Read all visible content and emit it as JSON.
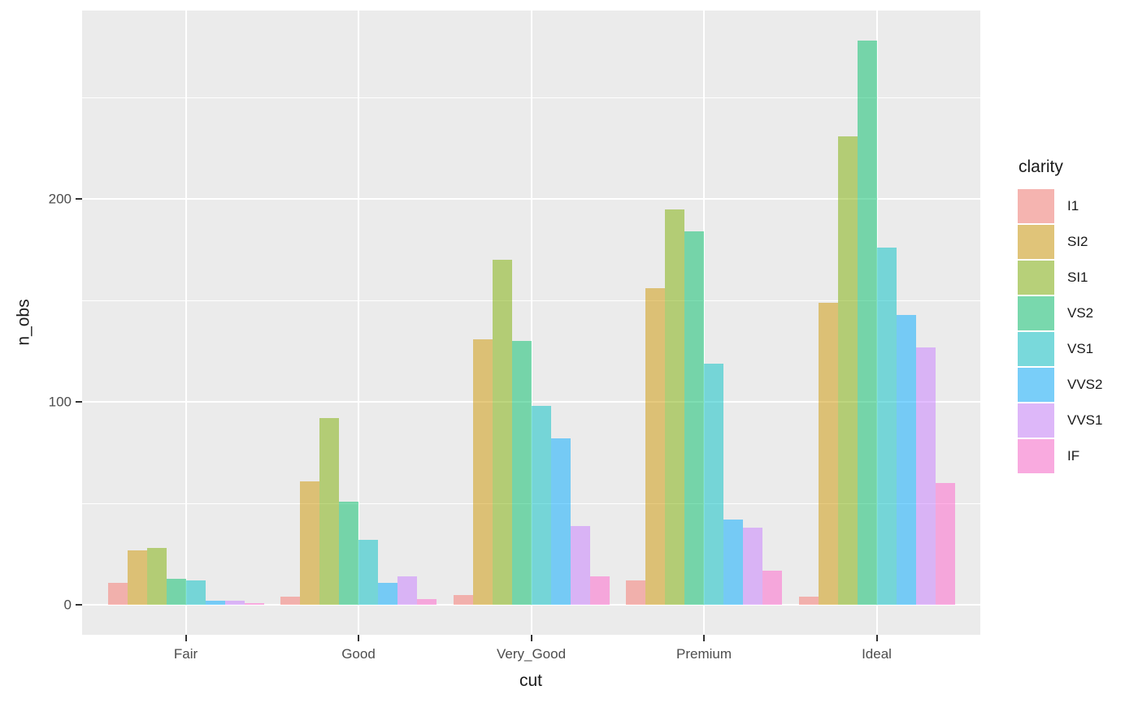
{
  "figure": {
    "background": "#FFFFFF"
  },
  "chart_data": {
    "type": "bar",
    "mode": "grouped-dodge",
    "title": "",
    "xlabel": "cut",
    "ylabel": "n_obs",
    "legend_title": "clarity",
    "legend_position": "right",
    "categories": [
      "Fair",
      "Good",
      "Very_Good",
      "Premium",
      "Ideal"
    ],
    "series": [
      {
        "name": "I1",
        "color": "#F8766D",
        "values": [
          11,
          4,
          5,
          12,
          4
        ]
      },
      {
        "name": "SI2",
        "color": "#CD9600",
        "values": [
          27,
          61,
          131,
          156,
          149
        ]
      },
      {
        "name": "SI1",
        "color": "#7CAE00",
        "values": [
          28,
          92,
          170,
          195,
          231
        ]
      },
      {
        "name": "VS2",
        "color": "#00BE67",
        "values": [
          13,
          51,
          130,
          184,
          278
        ]
      },
      {
        "name": "VS1",
        "color": "#00BFC4",
        "values": [
          12,
          32,
          98,
          119,
          176
        ]
      },
      {
        "name": "VVS2",
        "color": "#00A9FF",
        "values": [
          2,
          11,
          82,
          42,
          143
        ]
      },
      {
        "name": "VVS1",
        "color": "#C77CFF",
        "values": [
          2,
          14,
          39,
          38,
          127
        ]
      },
      {
        "name": "IF",
        "color": "#FF61CC",
        "values": [
          1,
          3,
          14,
          17,
          60
        ]
      }
    ],
    "bar_alpha": 0.5,
    "ylim": [
      0,
      292
    ],
    "y_major_breaks": [
      0,
      100,
      200
    ],
    "y_minor_breaks": [
      50,
      150,
      250
    ],
    "y_tick_labels": [
      "0",
      "100",
      "200"
    ],
    "grid": true,
    "panel_background": "#EBEBEB",
    "gridline_color": "#FFFFFF",
    "legend_key_background": "#F2F2F2",
    "tick_label_color": "#4D4D4D",
    "axis_title_color": "#1A1A1A",
    "tick_mark_color": "#333333"
  }
}
